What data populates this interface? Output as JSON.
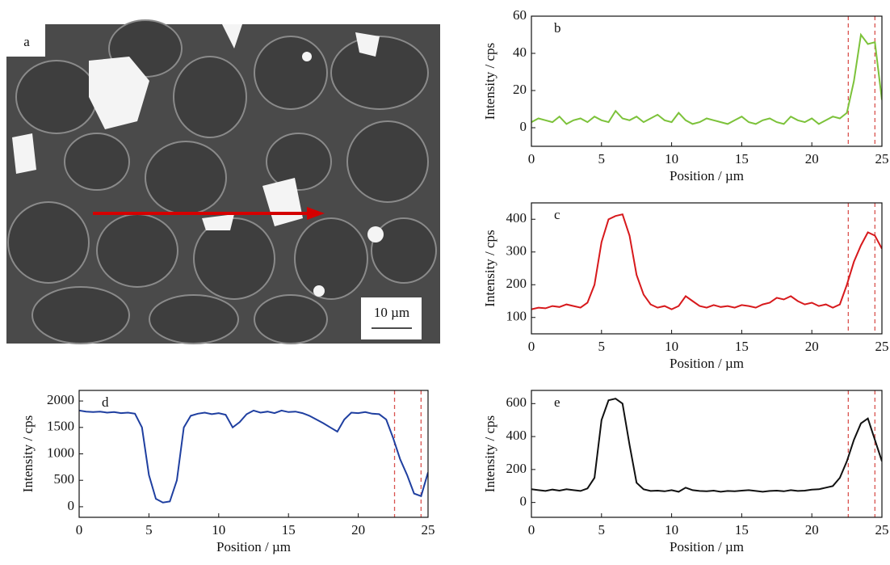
{
  "image_panel": {
    "label": "a",
    "scale_bar": "10 µm"
  },
  "chart_data": [
    {
      "type": "line",
      "label": "b",
      "xlabel": "Position / µm",
      "ylabel": "Intensity / cps",
      "color": "#7cc23a",
      "x": [
        0,
        0.5,
        1,
        1.5,
        2,
        2.5,
        3,
        3.5,
        4,
        4.5,
        5,
        5.5,
        6,
        6.5,
        7,
        7.5,
        8,
        8.5,
        9,
        9.5,
        10,
        10.5,
        11,
        11.5,
        12,
        12.5,
        13,
        13.5,
        14,
        14.5,
        15,
        15.5,
        16,
        16.5,
        17,
        17.5,
        18,
        18.5,
        19,
        19.5,
        20,
        20.5,
        21,
        21.5,
        22,
        22.5,
        23,
        23.5,
        24,
        24.5,
        25
      ],
      "values": [
        3,
        5,
        4,
        3,
        6,
        2,
        4,
        5,
        3,
        6,
        4,
        3,
        9,
        5,
        4,
        6,
        3,
        5,
        7,
        4,
        3,
        8,
        4,
        2,
        3,
        5,
        4,
        3,
        2,
        4,
        6,
        3,
        2,
        4,
        5,
        3,
        2,
        6,
        4,
        3,
        5,
        2,
        4,
        6,
        5,
        8,
        25,
        50,
        45,
        46,
        15
      ],
      "xlim": [
        0,
        25
      ],
      "xticks": [
        0,
        5,
        10,
        15,
        20,
        25
      ],
      "ylim": [
        -10,
        60
      ],
      "yticks": [
        0,
        20,
        40,
        60
      ],
      "vlines": [
        22.6,
        24.5
      ],
      "vline_color": "#d9534f"
    },
    {
      "type": "line",
      "label": "c",
      "xlabel": "Position / µm",
      "ylabel": "Intensity / cps",
      "color": "#d7191c",
      "x": [
        0,
        0.5,
        1,
        1.5,
        2,
        2.5,
        3,
        3.5,
        4,
        4.5,
        5,
        5.5,
        6,
        6.5,
        7,
        7.5,
        8,
        8.5,
        9,
        9.5,
        10,
        10.5,
        11,
        11.5,
        12,
        12.5,
        13,
        13.5,
        14,
        14.5,
        15,
        15.5,
        16,
        16.5,
        17,
        17.5,
        18,
        18.5,
        19,
        19.5,
        20,
        20.5,
        21,
        21.5,
        22,
        22.5,
        23,
        23.5,
        24,
        24.5,
        25
      ],
      "values": [
        125,
        130,
        128,
        135,
        132,
        140,
        135,
        130,
        145,
        200,
        330,
        400,
        410,
        415,
        350,
        230,
        170,
        140,
        130,
        135,
        125,
        135,
        165,
        150,
        135,
        130,
        138,
        132,
        135,
        130,
        138,
        135,
        130,
        140,
        145,
        160,
        155,
        165,
        150,
        140,
        145,
        135,
        140,
        130,
        140,
        200,
        270,
        320,
        360,
        350,
        310
      ],
      "xlim": [
        0,
        25
      ],
      "xticks": [
        0,
        5,
        10,
        15,
        20,
        25
      ],
      "ylim": [
        50,
        450
      ],
      "yticks": [
        100,
        200,
        300,
        400
      ],
      "vlines": [
        22.6,
        24.5
      ],
      "vline_color": "#d9534f"
    },
    {
      "type": "line",
      "label": "d",
      "xlabel": "Position / µm",
      "ylabel": "Intensity / cps",
      "color": "#1f3fa0",
      "x": [
        0,
        0.5,
        1,
        1.5,
        2,
        2.5,
        3,
        3.5,
        4,
        4.5,
        5,
        5.5,
        6,
        6.5,
        7,
        7.5,
        8,
        8.5,
        9,
        9.5,
        10,
        10.5,
        11,
        11.5,
        12,
        12.5,
        13,
        13.5,
        14,
        14.5,
        15,
        15.5,
        16,
        16.5,
        17,
        17.5,
        18,
        18.5,
        19,
        19.5,
        20,
        20.5,
        21,
        21.5,
        22,
        22.5,
        23,
        23.5,
        24,
        24.5,
        25
      ],
      "values": [
        1820,
        1800,
        1790,
        1800,
        1780,
        1790,
        1770,
        1780,
        1760,
        1500,
        600,
        150,
        80,
        100,
        500,
        1500,
        1720,
        1760,
        1780,
        1750,
        1770,
        1740,
        1500,
        1600,
        1750,
        1820,
        1780,
        1800,
        1770,
        1820,
        1790,
        1800,
        1770,
        1720,
        1650,
        1580,
        1500,
        1420,
        1650,
        1780,
        1770,
        1790,
        1760,
        1750,
        1650,
        1300,
        900,
        600,
        250,
        200,
        650
      ],
      "xlim": [
        0,
        25
      ],
      "xticks": [
        0,
        5,
        10,
        15,
        20,
        25
      ],
      "ylim": [
        -200,
        2200
      ],
      "yticks": [
        0,
        500,
        1000,
        1500,
        2000
      ],
      "vlines": [
        22.6,
        24.5
      ],
      "vline_color": "#d9534f"
    },
    {
      "type": "line",
      "label": "e",
      "xlabel": "Position / µm",
      "ylabel": "Intensity / cps",
      "color": "#111111",
      "x": [
        0,
        0.5,
        1,
        1.5,
        2,
        2.5,
        3,
        3.5,
        4,
        4.5,
        5,
        5.5,
        6,
        6.5,
        7,
        7.5,
        8,
        8.5,
        9,
        9.5,
        10,
        10.5,
        11,
        11.5,
        12,
        12.5,
        13,
        13.5,
        14,
        14.5,
        15,
        15.5,
        16,
        16.5,
        17,
        17.5,
        18,
        18.5,
        19,
        19.5,
        20,
        20.5,
        21,
        21.5,
        22,
        22.5,
        23,
        23.5,
        24,
        24.5,
        25
      ],
      "values": [
        80,
        75,
        70,
        78,
        72,
        80,
        75,
        70,
        85,
        150,
        500,
        620,
        630,
        600,
        350,
        120,
        80,
        70,
        72,
        68,
        75,
        65,
        90,
        75,
        70,
        68,
        72,
        65,
        70,
        68,
        72,
        75,
        70,
        65,
        70,
        72,
        68,
        75,
        70,
        72,
        78,
        80,
        90,
        100,
        150,
        250,
        380,
        480,
        510,
        380,
        250
      ],
      "xlim": [
        0,
        25
      ],
      "xticks": [
        0,
        5,
        10,
        15,
        20,
        25
      ],
      "ylim": [
        -90,
        680
      ],
      "yticks": [
        0,
        200,
        400,
        600
      ],
      "vlines": [
        22.6,
        24.5
      ],
      "vline_color": "#d9534f"
    }
  ]
}
